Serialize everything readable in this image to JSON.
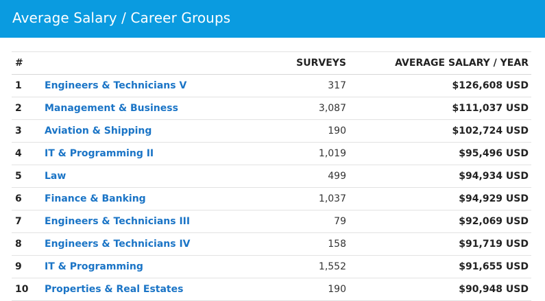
{
  "header": {
    "title": "Average Salary / Career Groups"
  },
  "table": {
    "columns": {
      "rank": "#",
      "name": "",
      "surveys": "SURVEYS",
      "salary": "AVERAGE SALARY / YEAR"
    },
    "rows": [
      {
        "rank": "1",
        "name": "Engineers & Technicians V",
        "surveys": "317",
        "salary": "$126,608 USD"
      },
      {
        "rank": "2",
        "name": "Management & Business",
        "surveys": "3,087",
        "salary": "$111,037 USD"
      },
      {
        "rank": "3",
        "name": "Aviation & Shipping",
        "surveys": "190",
        "salary": "$102,724 USD"
      },
      {
        "rank": "4",
        "name": "IT & Programming II",
        "surveys": "1,019",
        "salary": "$95,496 USD"
      },
      {
        "rank": "5",
        "name": "Law",
        "surveys": "499",
        "salary": "$94,934 USD"
      },
      {
        "rank": "6",
        "name": "Finance & Banking",
        "surveys": "1,037",
        "salary": "$94,929 USD"
      },
      {
        "rank": "7",
        "name": "Engineers & Technicians III",
        "surveys": "79",
        "salary": "$92,069 USD"
      },
      {
        "rank": "8",
        "name": "Engineers & Technicians IV",
        "surveys": "158",
        "salary": "$91,719 USD"
      },
      {
        "rank": "9",
        "name": "IT & Programming",
        "surveys": "1,552",
        "salary": "$91,655 USD"
      },
      {
        "rank": "10",
        "name": "Properties & Real Estates",
        "surveys": "190",
        "salary": "$90,948 USD"
      }
    ]
  },
  "colors": {
    "header_bg": "#0a9be0",
    "link": "#1a74c6"
  }
}
